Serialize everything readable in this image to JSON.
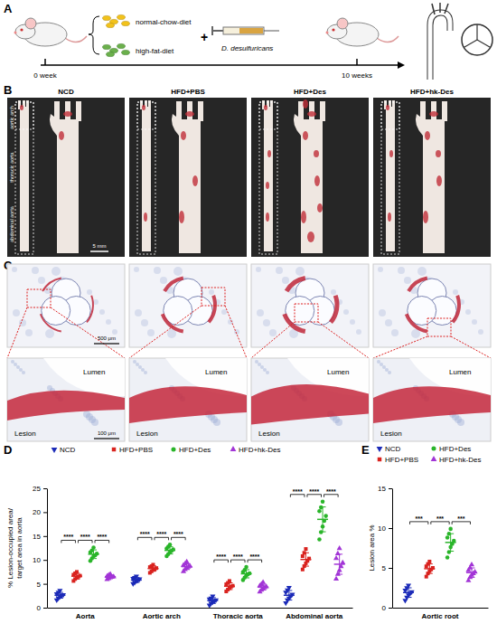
{
  "panels": {
    "A": {
      "letter": "A",
      "start": "0 week",
      "end": "10 weeks",
      "diets": [
        "normal-chow-diet",
        "high-fat-diet"
      ],
      "plus": "+",
      "treatment": "D. desulfuricans"
    },
    "B": {
      "letter": "B",
      "groups": [
        "NCD",
        "HFD+PBS",
        "HFD+Des",
        "HFD+hk-Des"
      ],
      "regions": [
        "aortic arch",
        "thoracic aorta",
        "abdominal aorta"
      ],
      "scale": "5 mm"
    },
    "C": {
      "letter": "C",
      "scale_overview": "500 μm",
      "scale_zoom": "100 μm",
      "zoom_labels": [
        [
          "Lumen",
          "Lesion"
        ],
        [
          "Lumen",
          "Lesion"
        ],
        [
          "Lumen",
          "Lesion"
        ],
        [
          "Lumen",
          "Lesion"
        ]
      ]
    }
  },
  "chart_data": [
    {
      "type": "scatter",
      "panel_label": "D",
      "ylabel": [
        "% Lesion-occupied area/",
        "target area in aorta"
      ],
      "categories": [
        "Aorta",
        "Aortic arch",
        "Thoracic aorta",
        "Abdominal aorta"
      ],
      "ylim": [
        0,
        25
      ],
      "yticks": [
        0,
        5,
        10,
        15,
        20,
        25
      ],
      "grid": false,
      "legend": "top",
      "series": [
        {
          "name": "NCD",
          "color": "#1c2bb8",
          "marker": "triangle-down",
          "values": [
            [
              1.6,
              2.0,
              2.3,
              2.5,
              2.7,
              2.9,
              3.2,
              3.6
            ],
            [
              5.0,
              5.3,
              5.6,
              5.8,
              6.0,
              6.1,
              6.3,
              6.6
            ],
            [
              0.5,
              0.9,
              1.2,
              1.4,
              1.6,
              1.8,
              2.0,
              2.4
            ],
            [
              1.0,
              1.6,
              2.0,
              2.4,
              2.8,
              3.2,
              3.7,
              4.2
            ]
          ],
          "mean": [
            2.6,
            5.8,
            1.5,
            2.6
          ],
          "sd": [
            0.6,
            0.5,
            0.6,
            1.0
          ]
        },
        {
          "name": "HFD+PBS",
          "color": "#d9231f",
          "marker": "square",
          "values": [
            [
              5.6,
              6.0,
              6.3,
              6.5,
              6.7,
              6.9,
              7.2,
              7.5
            ],
            [
              7.3,
              7.6,
              7.9,
              8.1,
              8.3,
              8.5,
              8.7,
              9.0
            ],
            [
              3.4,
              3.8,
              4.1,
              4.4,
              4.6,
              4.9,
              5.2,
              5.6
            ],
            [
              8.0,
              8.7,
              9.3,
              9.8,
              10.3,
              10.8,
              11.5,
              12.3
            ]
          ],
          "mean": [
            6.6,
            8.2,
            4.5,
            10.1
          ],
          "sd": [
            0.6,
            0.55,
            0.7,
            1.4
          ]
        },
        {
          "name": "HFD+Des",
          "color": "#2ab52a",
          "marker": "circle",
          "values": [
            [
              9.8,
              10.3,
              10.8,
              11.0,
              11.3,
              11.6,
              12.0,
              12.6
            ],
            [
              10.8,
              11.2,
              11.6,
              11.9,
              12.2,
              12.4,
              12.8,
              13.2
            ],
            [
              5.8,
              6.3,
              6.7,
              7.0,
              7.2,
              7.5,
              7.9,
              8.5
            ],
            [
              14.3,
              15.8,
              17.0,
              18.2,
              19.2,
              20.2,
              21.0,
              22.2
            ]
          ],
          "mean": [
            11.2,
            12.0,
            7.1,
            18.5
          ],
          "sd": [
            0.9,
            0.75,
            0.85,
            2.6
          ]
        },
        {
          "name": "HFD+hk-Des",
          "color": "#a235d6",
          "marker": "triangle-up",
          "values": [
            [
              5.9,
              6.1,
              6.3,
              6.4,
              6.5,
              6.6,
              6.8,
              7.0
            ],
            [
              7.6,
              8.0,
              8.3,
              8.5,
              8.7,
              8.9,
              9.2,
              9.6
            ],
            [
              3.3,
              3.7,
              4.0,
              4.2,
              4.4,
              4.6,
              4.9,
              5.3
            ],
            [
              6.0,
              7.0,
              7.8,
              8.6,
              9.4,
              10.3,
              11.3,
              12.4
            ]
          ],
          "mean": [
            6.5,
            8.6,
            4.3,
            9.1
          ],
          "sd": [
            0.35,
            0.6,
            0.6,
            2.1
          ]
        }
      ],
      "annotations": [
        {
          "text": "****",
          "category": 0,
          "between": [
            0,
            1
          ]
        },
        {
          "text": "****",
          "category": 0,
          "between": [
            1,
            2
          ]
        },
        {
          "text": "****",
          "category": 0,
          "between": [
            2,
            3
          ]
        },
        {
          "text": "****",
          "category": 1,
          "between": [
            0,
            1
          ]
        },
        {
          "text": "****",
          "category": 1,
          "between": [
            1,
            2
          ]
        },
        {
          "text": "****",
          "category": 1,
          "between": [
            2,
            3
          ]
        },
        {
          "text": "****",
          "category": 2,
          "between": [
            0,
            1
          ]
        },
        {
          "text": "****",
          "category": 2,
          "between": [
            1,
            2
          ]
        },
        {
          "text": "****",
          "category": 2,
          "between": [
            2,
            3
          ]
        },
        {
          "text": "****",
          "category": 3,
          "between": [
            0,
            1
          ]
        },
        {
          "text": "****",
          "category": 3,
          "between": [
            1,
            2
          ]
        },
        {
          "text": "****",
          "category": 3,
          "between": [
            2,
            3
          ]
        }
      ]
    },
    {
      "type": "scatter",
      "panel_label": "E",
      "ylabel": [
        "Lesion area %"
      ],
      "categories": [
        "Aortic root"
      ],
      "ylim": [
        0,
        15
      ],
      "yticks": [
        0,
        5,
        10,
        15
      ],
      "grid": false,
      "legend": "top",
      "series": [
        {
          "name": "NCD",
          "color": "#1c2bb8",
          "marker": "triangle-down",
          "values": [
            [
              0.9,
              1.3,
              1.6,
              1.8,
              2.0,
              2.2,
              2.5,
              2.8
            ]
          ],
          "mean": [
            1.9
          ],
          "sd": [
            0.6
          ]
        },
        {
          "name": "HFD+PBS",
          "color": "#d9231f",
          "marker": "square",
          "values": [
            [
              3.9,
              4.3,
              4.6,
              4.8,
              5.0,
              5.2,
              5.5,
              5.8
            ]
          ],
          "mean": [
            4.9
          ],
          "sd": [
            0.6
          ]
        },
        {
          "name": "HFD+Des",
          "color": "#2ab52a",
          "marker": "circle",
          "values": [
            [
              6.3,
              7.0,
              7.6,
              8.0,
              8.4,
              8.8,
              9.3,
              9.9
            ]
          ],
          "mean": [
            8.2
          ],
          "sd": [
            1.1
          ]
        },
        {
          "name": "HFD+hk-Des",
          "color": "#a235d6",
          "marker": "triangle-up",
          "values": [
            [
              3.4,
              3.8,
              4.1,
              4.3,
              4.5,
              4.7,
              5.0,
              5.4
            ]
          ],
          "mean": [
            4.4
          ],
          "sd": [
            0.6
          ]
        }
      ],
      "annotations": [
        {
          "text": "***",
          "category": 0,
          "between": [
            0,
            1
          ]
        },
        {
          "text": "***",
          "category": 0,
          "between": [
            1,
            2
          ]
        },
        {
          "text": "***",
          "category": 0,
          "between": [
            2,
            3
          ]
        }
      ]
    }
  ]
}
